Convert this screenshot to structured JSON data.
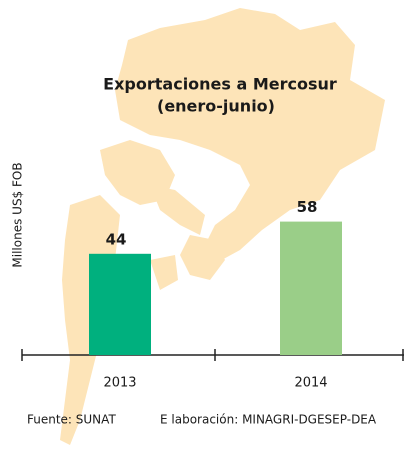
{
  "chart_data": {
    "type": "bar",
    "title": "Exportaciones a Mercosur",
    "subtitle": "(enero-junio)",
    "y_axis_label": "Millones US$ FOB",
    "categories": [
      "2013",
      "2014"
    ],
    "values": [
      44,
      58
    ],
    "colors": [
      "#00b07e",
      "#9ace88"
    ],
    "ylim": [
      0,
      60
    ],
    "source": "Fuente: SUNAT",
    "credit": "E laboración: MINAGRI-DGESEP-DEA"
  }
}
